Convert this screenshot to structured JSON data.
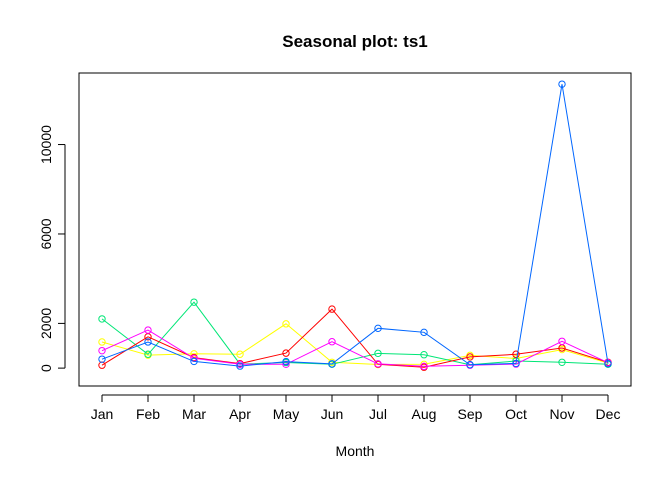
{
  "chart_data": {
    "type": "line",
    "title": "Seasonal plot: ts1",
    "xlabel": "Month",
    "ylabel": "",
    "categories": [
      "Jan",
      "Feb",
      "Mar",
      "Apr",
      "May",
      "Jun",
      "Jul",
      "Aug",
      "Sep",
      "Oct",
      "Nov",
      "Dec"
    ],
    "yticks": [
      0,
      2000,
      6000,
      10000
    ],
    "ylim": [
      -800,
      13200
    ],
    "grid": false,
    "legend": "none",
    "series": [
      {
        "color": "#ffff00",
        "values": [
          1170,
          580,
          640,
          620,
          1980,
          260,
          160,
          170,
          570,
          430,
          830,
          230
        ]
      },
      {
        "color": "#00e676",
        "values": [
          2200,
          620,
          2950,
          180,
          250,
          170,
          660,
          600,
          150,
          320,
          260,
          170
        ]
      },
      {
        "color": "#ff0000",
        "values": [
          130,
          1400,
          470,
          200,
          670,
          2640,
          170,
          40,
          500,
          620,
          900,
          260
        ]
      },
      {
        "color": "#ff00ff",
        "values": [
          780,
          1700,
          440,
          170,
          170,
          1180,
          190,
          80,
          130,
          180,
          1200,
          240
        ]
      },
      {
        "color": "#0066ff",
        "values": [
          400,
          1170,
          300,
          90,
          290,
          190,
          1780,
          1600,
          150,
          210,
          12700,
          200
        ]
      }
    ]
  }
}
